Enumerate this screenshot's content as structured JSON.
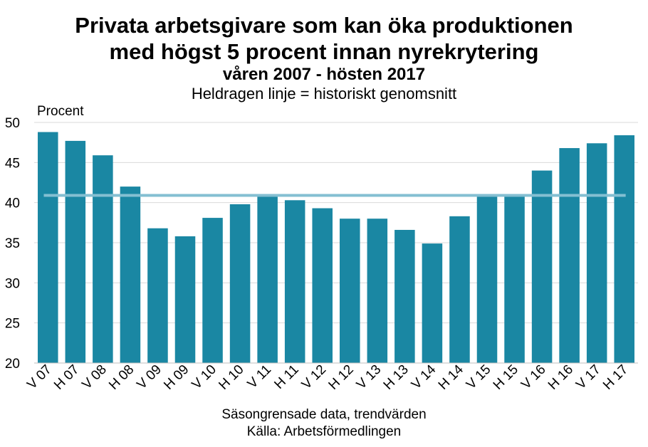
{
  "chart_data": {
    "type": "bar",
    "title": "Privata arbetsgivare som kan öka produktionen",
    "title_line2": "med högst 5 procent innan nyrekrytering",
    "subtitle": "våren 2007 - hösten 2017",
    "note": "Heldragen linje = historiskt genomsnitt",
    "ylabel": "Procent",
    "xlabel": "Säsongrensade data, trendvärden",
    "source": "Källa: Arbetsförmedlingen",
    "ylim": [
      20,
      50
    ],
    "yticks": [
      20,
      25,
      30,
      35,
      40,
      45,
      50
    ],
    "grid": true,
    "categories": [
      "V 07",
      "H 07",
      "V 08",
      "H 08",
      "V 09",
      "H 09",
      "V 10",
      "H 10",
      "V 11",
      "H 11",
      "V 12",
      "H 12",
      "V 13",
      "H 13",
      "V 14",
      "H 14",
      "V 15",
      "H 15",
      "V 16",
      "H 16",
      "V 17",
      "H 17"
    ],
    "values": [
      48.8,
      47.7,
      45.9,
      42.0,
      36.8,
      35.8,
      38.1,
      39.8,
      40.9,
      40.3,
      39.3,
      38.0,
      38.0,
      36.6,
      34.9,
      38.3,
      40.9,
      40.9,
      44.0,
      46.8,
      47.4,
      48.4
    ],
    "reference_line": {
      "value": 40.9
    },
    "colors": {
      "bar": "#1a87a3",
      "reference_line": "#84bfd2",
      "grid": "#d9d9d9"
    }
  }
}
